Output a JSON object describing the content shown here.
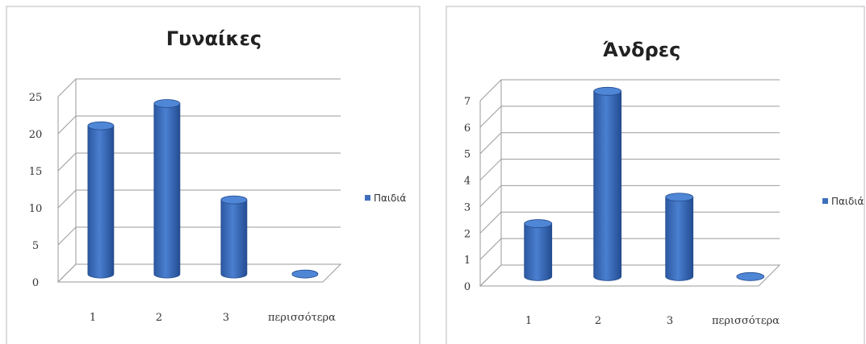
{
  "chart_data": [
    {
      "type": "bar",
      "title": "Γυναίκες",
      "categories": [
        "1",
        "2",
        "3",
        "περισσότερα"
      ],
      "series": [
        {
          "name": "Παιδιά",
          "values": [
            20,
            23,
            10,
            0
          ]
        }
      ],
      "yticks": [
        "0",
        "5",
        "10",
        "15",
        "20",
        "25"
      ],
      "ylim": [
        0,
        25
      ],
      "xlabel": "",
      "ylabel": "",
      "grid": true,
      "legend": "right",
      "color": "#3e6fbd"
    },
    {
      "type": "bar",
      "title": "Άνδρες",
      "categories": [
        "1",
        "2",
        "3",
        "περισσότερα"
      ],
      "series": [
        {
          "name": "Παιδιά",
          "values": [
            2,
            7,
            3,
            0
          ]
        }
      ],
      "yticks": [
        "0",
        "1",
        "2",
        "3",
        "4",
        "5",
        "6",
        "7"
      ],
      "ylim": [
        0,
        7
      ],
      "xlabel": "",
      "ylabel": "",
      "grid": true,
      "legend": "right",
      "color": "#3e6fbd"
    }
  ]
}
